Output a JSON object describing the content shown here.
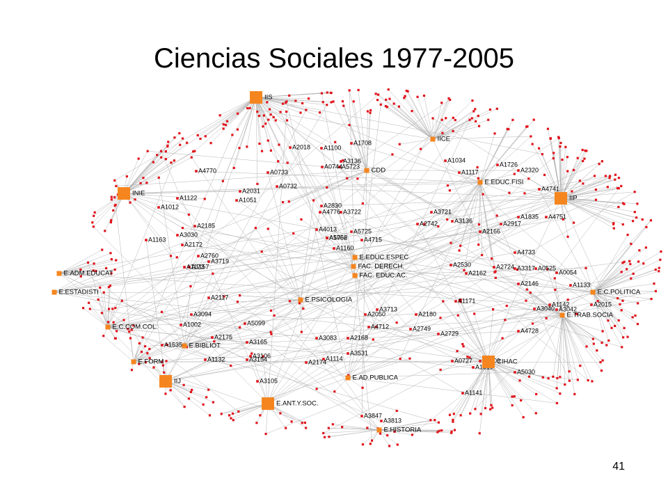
{
  "header": {
    "title": "Ciencias Sociales 1977-2005"
  },
  "footer": {
    "page_number": "41"
  },
  "hub_labels": [
    "IIS",
    "INIE",
    "IIP",
    "CIHAC",
    "E.ANT.Y.SOC.",
    "IIJ",
    "IICE",
    "CDD",
    "E.EDUC.ESPEC",
    "FAC. DERECH.",
    "FAC. EDUC.AC.",
    "E.PSICOLOGIA",
    "E.TRAB.SOCIA",
    "E.C.POLITICA",
    "E.ADM.EDUCAT",
    "E.ESTADISTI",
    "E.C.COM.COL.",
    "E.BIBLIOT",
    "E.FORM",
    "E.AD.PUBLICA",
    "E.HISTORIA",
    "E.EDUC.FISI"
  ],
  "node_labels": [
    "A1122",
    "A1012",
    "A2031",
    "A1051",
    "A4770",
    "A1163",
    "A2185",
    "A3030",
    "A2172",
    "A1173",
    "A3719",
    "A1157",
    "A2760",
    "A5056",
    "A1160",
    "A4013",
    "A2830",
    "A3722",
    "A4776",
    "A1762",
    "A4715",
    "A5725",
    "A3721",
    "A2742",
    "A3136",
    "A2166",
    "A2917",
    "A4751",
    "A1835",
    "A3317",
    "A2724",
    "A2530",
    "A2162",
    "A2146",
    "A1171",
    "A3713",
    "A2180",
    "A2050",
    "A4712",
    "A2749",
    "A2729",
    "A3083",
    "A2168",
    "A3531",
    "A1114",
    "A3154",
    "A3106",
    "A1132",
    "A2175",
    "A2117",
    "A1002",
    "A5099",
    "A3165",
    "A1535",
    "A3094",
    "A4728",
    "A1511",
    "A0727",
    "A0709",
    "A5030",
    "A1141",
    "A3847",
    "A3813",
    "A3042",
    "A1142",
    "A3040",
    "A2015",
    "A1100",
    "A0744",
    "A5723",
    "A1708",
    "A2018",
    "A3136",
    "A0732",
    "A0733",
    "A1034",
    "A1117",
    "A1726",
    "A2320",
    "A4741",
    "A4733",
    "A0525",
    "A0054",
    "A1133",
    "A3105",
    "A2174"
  ]
}
